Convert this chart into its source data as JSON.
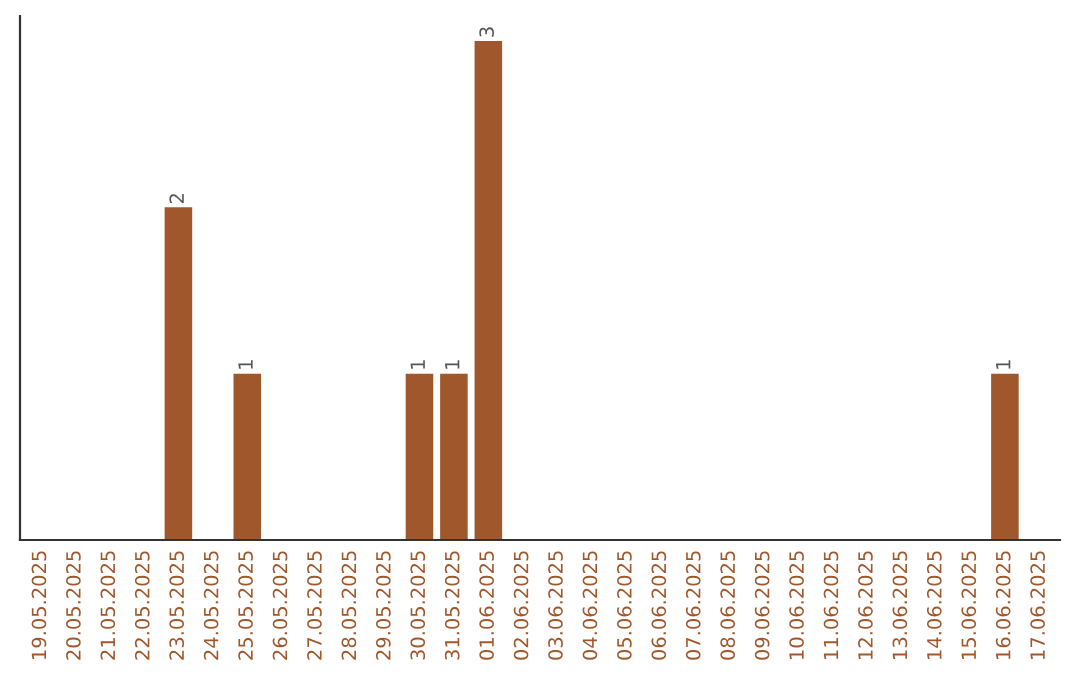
{
  "chart_data": {
    "type": "bar",
    "categories": [
      "19.05.2025",
      "20.05.2025",
      "21.05.2025",
      "22.05.2025",
      "23.05.2025",
      "24.05.2025",
      "25.05.2025",
      "26.05.2025",
      "27.05.2025",
      "28.05.2025",
      "29.05.2025",
      "30.05.2025",
      "31.05.2025",
      "01.06.2025",
      "02.06.2025",
      "03.06.2025",
      "04.06.2025",
      "05.06.2025",
      "06.06.2025",
      "07.06.2025",
      "08.06.2025",
      "09.06.2025",
      "10.06.2025",
      "11.06.2025",
      "12.06.2025",
      "13.06.2025",
      "14.06.2025",
      "15.06.2025",
      "16.06.2025",
      "17.06.2025"
    ],
    "values": [
      0,
      0,
      0,
      0,
      2,
      0,
      1,
      0,
      0,
      0,
      0,
      1,
      1,
      3,
      0,
      0,
      0,
      0,
      0,
      0,
      0,
      0,
      0,
      0,
      0,
      0,
      0,
      0,
      1,
      0
    ],
    "value_labels": [
      null,
      null,
      null,
      null,
      "2",
      null,
      "1",
      null,
      null,
      null,
      null,
      "1",
      "1",
      "3",
      null,
      null,
      null,
      null,
      null,
      null,
      null,
      null,
      null,
      null,
      null,
      null,
      null,
      null,
      "1",
      null
    ],
    "color": "#a0572b",
    "tick_labels": "x",
    "grid": false,
    "legend": false
  }
}
